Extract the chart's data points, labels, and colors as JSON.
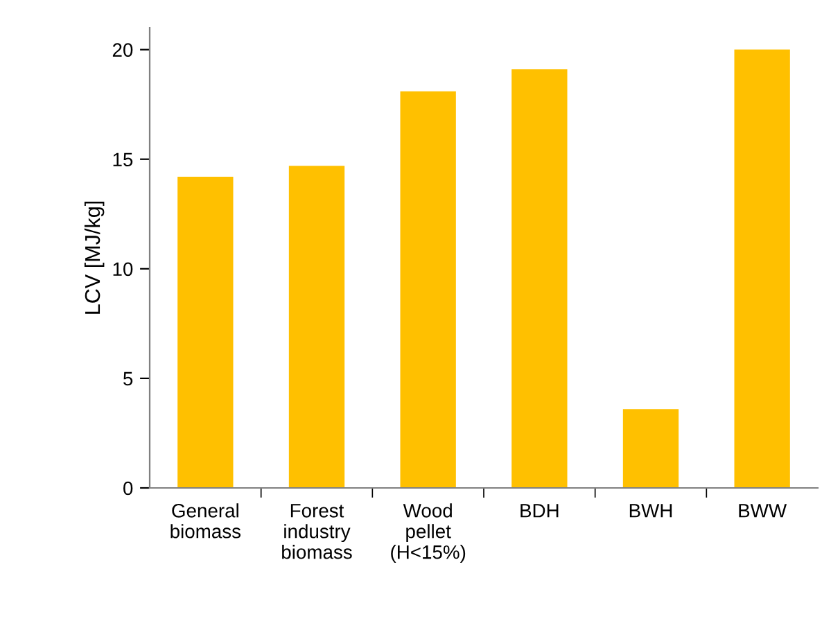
{
  "chart_data": {
    "type": "bar",
    "ylabel": "LCV [MJ/kg]",
    "categories": [
      "General\nbiomass",
      "Forest\nindustry\nbiomass",
      "Wood\npellet\n(H<15%)",
      "BDH",
      "BWH",
      "BWW"
    ],
    "values": [
      14.2,
      14.7,
      18.1,
      19.1,
      3.6,
      20.0
    ],
    "color": "#ffc000",
    "ylim": [
      0,
      21
    ],
    "yticks": [
      0,
      5,
      10,
      15,
      20
    ],
    "grid": false,
    "legend": false
  }
}
